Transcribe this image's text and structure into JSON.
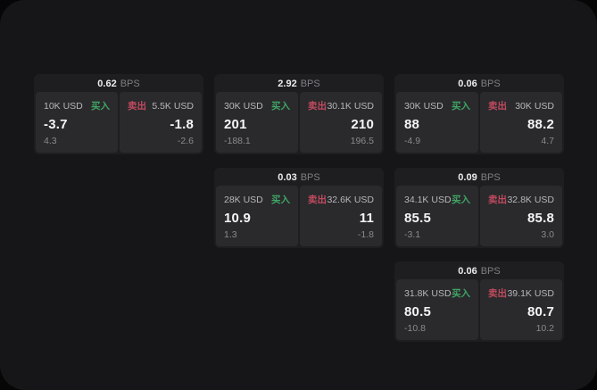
{
  "labels": {
    "bps_unit": "BPS",
    "buy": "买入",
    "sell": "卖出"
  },
  "colors": {
    "buy": "#3fa463",
    "sell": "#c14a5e",
    "window_bg": "#161618",
    "card_bg": "#1e1e20",
    "panel_bg": "#2a2a2d"
  },
  "cards": [
    {
      "bps": "0.62",
      "row": 1,
      "col": 1,
      "buy": {
        "amount": "10K USD",
        "value": "-3.7",
        "sub": "4.3"
      },
      "sell": {
        "amount": "5.5K USD",
        "value": "-1.8",
        "sub": "-2.6"
      }
    },
    {
      "bps": "2.92",
      "row": 1,
      "col": 2,
      "buy": {
        "amount": "30K USD",
        "value": "201",
        "sub": "-188.1"
      },
      "sell": {
        "amount": "30.1K USD",
        "value": "210",
        "sub": "196.5"
      }
    },
    {
      "bps": "0.06",
      "row": 1,
      "col": 3,
      "buy": {
        "amount": "30K USD",
        "value": "88",
        "sub": "-4.9"
      },
      "sell": {
        "amount": "30K USD",
        "value": "88.2",
        "sub": "4.7"
      }
    },
    {
      "bps": "0.03",
      "row": 2,
      "col": 2,
      "buy": {
        "amount": "28K USD",
        "value": "10.9",
        "sub": "1.3"
      },
      "sell": {
        "amount": "32.6K USD",
        "value": "11",
        "sub": "-1.8"
      }
    },
    {
      "bps": "0.09",
      "row": 2,
      "col": 3,
      "buy": {
        "amount": "34.1K USD",
        "value": "85.5",
        "sub": "-3.1"
      },
      "sell": {
        "amount": "32.8K USD",
        "value": "85.8",
        "sub": "3.0"
      }
    },
    {
      "bps": "0.06",
      "row": 3,
      "col": 3,
      "buy": {
        "amount": "31.8K USD",
        "value": "80.5",
        "sub": "-10.8"
      },
      "sell": {
        "amount": "39.1K USD",
        "value": "80.7",
        "sub": "10.2"
      }
    }
  ]
}
